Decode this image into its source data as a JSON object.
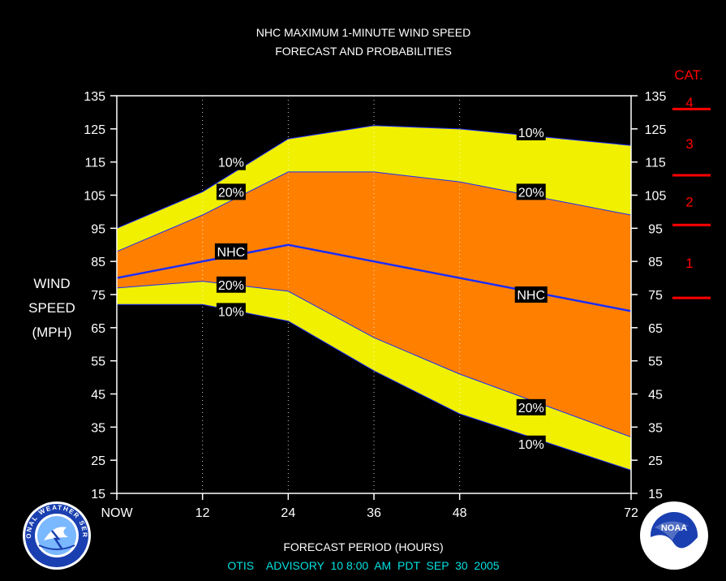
{
  "chart_data": {
    "type": "area",
    "title_line1": "NHC MAXIMUM 1-MINUTE WIND SPEED",
    "title_line2": "FORECAST AND PROBABILITIES",
    "ylabel_lines": [
      "WIND",
      "SPEED",
      "(MPH)"
    ],
    "xlabel": "FORECAST PERIOD (HOURS)",
    "x_ticks": [
      {
        "x": 0,
        "label": "NOW"
      },
      {
        "x": 12,
        "label": "12"
      },
      {
        "x": 24,
        "label": "24"
      },
      {
        "x": 36,
        "label": "36"
      },
      {
        "x": 48,
        "label": "48"
      },
      {
        "x": 72,
        "label": "72"
      }
    ],
    "xlim": [
      0,
      72
    ],
    "ylim": [
      15,
      135
    ],
    "y_ticks": [
      "135",
      "125",
      "115",
      "105",
      "95",
      "85",
      "75",
      "65",
      "55",
      "45",
      "35",
      "25",
      "15"
    ],
    "vertical_grid_at": [
      12,
      24,
      36,
      48
    ],
    "x": [
      0,
      12,
      24,
      36,
      48,
      72
    ],
    "series": [
      {
        "name": "10%",
        "values": [
          95,
          106,
          122,
          126,
          125,
          120
        ]
      },
      {
        "name": "20%",
        "values": [
          88,
          99,
          112,
          112,
          109,
          99
        ]
      },
      {
        "name": "NHC",
        "values": [
          80,
          85,
          90,
          85,
          80,
          70
        ]
      },
      {
        "name": "20%",
        "values": [
          77,
          79,
          76,
          62,
          51,
          32
        ]
      },
      {
        "name": "10%",
        "values": [
          72,
          72,
          67,
          52,
          39,
          22
        ]
      }
    ],
    "line_labels": [
      {
        "text": "10%",
        "x": 16,
        "y": 115
      },
      {
        "text": "20%",
        "x": 16,
        "y": 106
      },
      {
        "text": "NHC",
        "x": 16,
        "y": 88
      },
      {
        "text": "20%",
        "x": 16,
        "y": 78
      },
      {
        "text": "10%",
        "x": 16,
        "y": 70
      },
      {
        "text": "10%",
        "x": 58,
        "y": 124
      },
      {
        "text": "20%",
        "x": 58,
        "y": 106
      },
      {
        "text": "NHC",
        "x": 58,
        "y": 75
      },
      {
        "text": "20%",
        "x": 58,
        "y": 41
      },
      {
        "text": "10%",
        "x": 58,
        "y": 30
      }
    ],
    "category_scale": {
      "title": "CAT.",
      "categories": [
        {
          "label": "1",
          "from": 74,
          "to": 95
        },
        {
          "label": "2",
          "from": 96,
          "to": 110
        },
        {
          "label": "3",
          "from": 111,
          "to": 130
        },
        {
          "label": "4",
          "from": 131,
          "to": 135
        }
      ],
      "boundaries": [
        74,
        96,
        111,
        131
      ]
    },
    "colors": {
      "band_10": "#f0f000",
      "band_20": "#ff8000",
      "nhc_line": "#1a2cff",
      "category": "#ff0000",
      "advisory": "#00e0e0",
      "background": "#000000",
      "text": "#ffffff"
    }
  },
  "footer": {
    "advisory": "OTIS    ADVISORY  10 8:00  AM  PDT  SEP  30  2005"
  },
  "logos": {
    "left": "NATIONAL WEATHER SERVICE",
    "right": "NOAA"
  }
}
